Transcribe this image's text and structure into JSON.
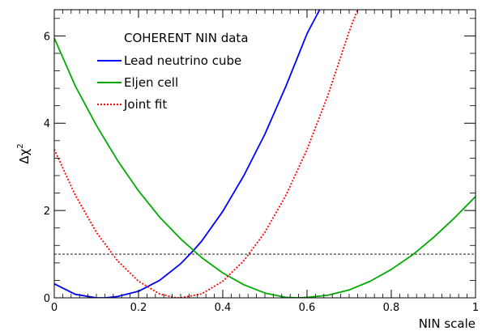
{
  "chart_data": {
    "type": "line",
    "title": "",
    "xlabel": "NIN scale",
    "ylabel": "Δχ",
    "ylabel_superscript": "2",
    "xlim": [
      0,
      1
    ],
    "ylim": [
      0,
      6.6
    ],
    "x_ticks": [
      0,
      0.2,
      0.4,
      0.6,
      0.8,
      1
    ],
    "x_tick_labels": [
      "0",
      "0.2",
      "0.4",
      "0.6",
      "0.8",
      "1"
    ],
    "y_ticks": [
      0,
      2,
      4,
      6
    ],
    "y_tick_labels": [
      "0",
      "2",
      "4",
      "6"
    ],
    "grid": false,
    "legend": {
      "placement": "top-center",
      "title": "COHERENT NIN data",
      "entries": [
        "Lead neutrino cube",
        "Eljen cell",
        "Joint fit"
      ]
    },
    "reference_line": {
      "y": 1,
      "style": "dashed",
      "color": "#000000"
    },
    "series": [
      {
        "name": "Lead neutrino cube",
        "color": "#0000ff",
        "style": "solid",
        "x": [
          0,
          0.05,
          0.1,
          0.12,
          0.15,
          0.2,
          0.25,
          0.3,
          0.33,
          0.35,
          0.4,
          0.45,
          0.5,
          0.55,
          0.6,
          0.63
        ],
        "y": [
          0.32,
          0.08,
          0.0,
          0.0,
          0.03,
          0.15,
          0.4,
          0.78,
          1.08,
          1.3,
          1.98,
          2.8,
          3.75,
          4.85,
          6.05,
          6.6
        ]
      },
      {
        "name": "Eljen cell",
        "color": "#00aa00",
        "style": "solid",
        "x": [
          0,
          0.05,
          0.1,
          0.15,
          0.2,
          0.25,
          0.3,
          0.35,
          0.4,
          0.45,
          0.5,
          0.55,
          0.58,
          0.6,
          0.65,
          0.7,
          0.75,
          0.8,
          0.85,
          0.9,
          0.95,
          1
        ],
        "y": [
          5.95,
          4.85,
          3.95,
          3.15,
          2.45,
          1.85,
          1.35,
          0.92,
          0.57,
          0.3,
          0.11,
          0.01,
          0.0,
          0.01,
          0.06,
          0.18,
          0.38,
          0.65,
          0.98,
          1.38,
          1.83,
          2.32
        ]
      },
      {
        "name": "Joint fit",
        "color": "#ff0000",
        "style": "dotted",
        "x": [
          0,
          0.05,
          0.1,
          0.15,
          0.2,
          0.25,
          0.29,
          0.3,
          0.35,
          0.4,
          0.45,
          0.5,
          0.55,
          0.6,
          0.65,
          0.7,
          0.72
        ],
        "y": [
          3.4,
          2.35,
          1.5,
          0.85,
          0.38,
          0.09,
          0.0,
          0.0,
          0.09,
          0.38,
          0.85,
          1.5,
          2.35,
          3.4,
          4.65,
          6.1,
          6.6
        ]
      }
    ]
  }
}
